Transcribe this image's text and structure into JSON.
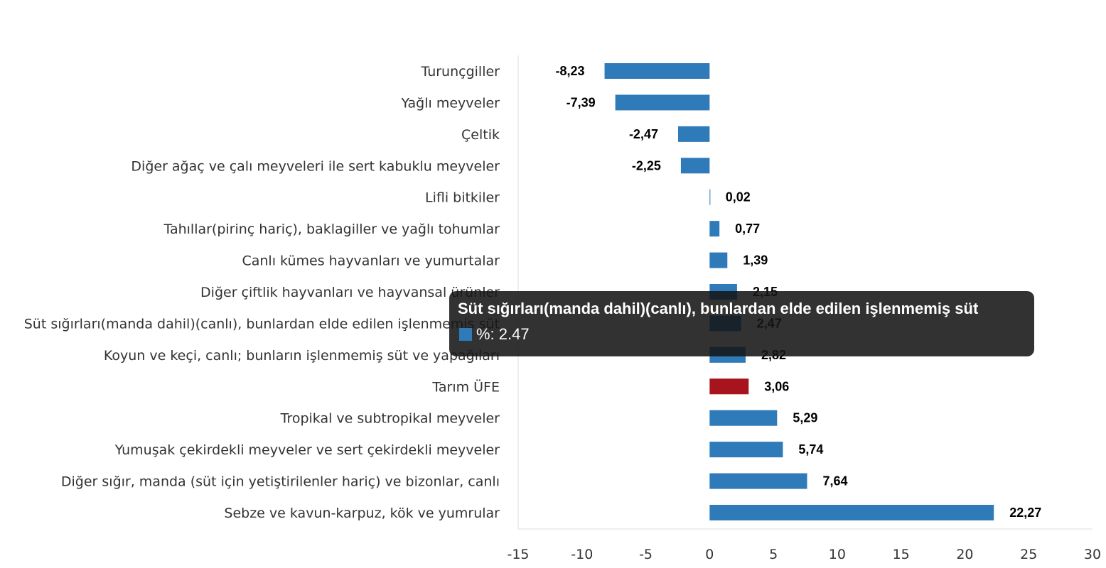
{
  "chart_data": {
    "type": "bar",
    "orientation": "horizontal",
    "categories": [
      "Turunçgiller",
      "Yağlı meyveler",
      "Çeltik",
      "Diğer ağaç ve çalı meyveleri ile sert kabuklu meyveler",
      "Lifli bitkiler",
      "Tahıllar(pirinç hariç), baklagiller ve yağlı tohumlar",
      "Canlı kümes hayvanları ve yumurtalar",
      "Diğer çiftlik hayvanları ve hayvansal ürünler",
      "Süt sığırları(manda dahil)(canlı), bunlardan elde edilen işlenmemiş süt",
      "Koyun ve keçi, canlı; bunların işlenmemiş süt ve yapağıları",
      "Tarım ÜFE",
      "Tropikal ve subtropikal meyveler",
      "Yumuşak çekirdekli meyveler ve sert çekirdekli meyveler",
      "Diğer sığır, manda (süt için yetiştirilenler hariç) ve bizonlar, canlı",
      "Sebze ve kavun-karpuz, kök ve yumrular"
    ],
    "values": [
      -8.23,
      -7.39,
      -2.47,
      -2.25,
      0.02,
      0.77,
      1.39,
      2.15,
      2.47,
      2.82,
      3.06,
      5.29,
      5.74,
      7.64,
      22.27
    ],
    "data_labels": [
      "-8,23",
      "-7,39",
      "-2,47",
      "-2,25",
      "0,02",
      "0,77",
      "1,39",
      "2,15",
      "2,47",
      "2,82",
      "3,06",
      "5,29",
      "5,74",
      "7,64",
      "22,27"
    ],
    "highlight_category": "Tarım ÜFE",
    "xlim": [
      -15,
      30
    ],
    "xticks": [
      "-15",
      "-10",
      "-5",
      "0",
      "5",
      "10",
      "15",
      "20",
      "25",
      "30"
    ],
    "xtick_values": [
      -15,
      -10,
      -5,
      0,
      5,
      10,
      15,
      20,
      25,
      30
    ],
    "colors": {
      "bar": "#2f7ab8",
      "highlight": "#a8141e"
    },
    "grid": false,
    "legend": "none"
  },
  "tooltip": {
    "title": "Süt sığırları(manda dahil)(canlı), bunlardan elde edilen işlenmemiş süt",
    "series_label": "%: 2.47"
  }
}
